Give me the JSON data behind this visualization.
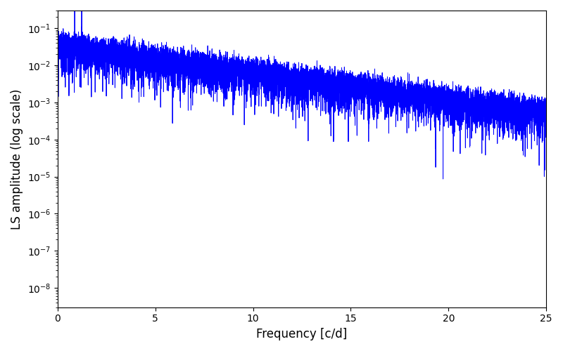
{
  "xlabel": "Frequency [c/d]",
  "ylabel": "LS amplitude (log scale)",
  "line_color": "#0000FF",
  "line_width": 0.7,
  "xlim": [
    0,
    25
  ],
  "ylim": [
    3e-09,
    0.3
  ],
  "yscale": "log",
  "background_color": "#ffffff",
  "figsize": [
    8.0,
    5.0
  ],
  "dpi": 100,
  "num_points": 10000,
  "freq_max": 25.0,
  "seed": 12345,
  "yticks": [
    1e-08,
    1e-07,
    1e-06,
    1e-05,
    0.0001,
    0.001,
    0.01,
    0.1
  ]
}
